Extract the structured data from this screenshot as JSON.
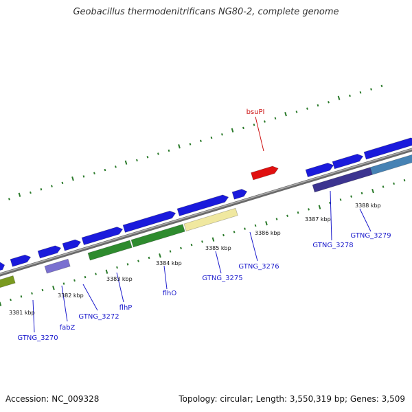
{
  "header": {
    "title": "Geobacillus thermodenitrificans NG80-2, complete genome"
  },
  "footer": {
    "accession": "Accession: NC_009328",
    "stats": "Topology: circular; Length: 3,550,319 bp; Genes: 3,509"
  },
  "colors": {
    "backbone": "#8c8c8c",
    "tick": "#2a7a2a",
    "gene_blue": "#1a1adc",
    "gene_red": "#e01010",
    "gene_green": "#2e8b2e",
    "gene_olive": "#7a9a20",
    "gene_yellow": "#f0e8a0",
    "gene_lavender": "#7a70d0",
    "gene_navy": "#3c3490",
    "gene_steel": "#4682b4",
    "label_blue": "#1a1acc",
    "label_red": "#cc1010"
  },
  "scale": {
    "ticks": [
      {
        "label": "3381 kbp"
      },
      {
        "label": "3382 kbp"
      },
      {
        "label": "3383 kbp"
      },
      {
        "label": "3384 kbp"
      },
      {
        "label": "3385 kbp"
      },
      {
        "label": "3386 kbp"
      },
      {
        "label": "3387 kbp"
      },
      {
        "label": "3388 kbp"
      }
    ]
  },
  "genes": [
    {
      "label": "GTNG_3270",
      "color": "label_blue"
    },
    {
      "label": "fabZ",
      "color": "label_blue"
    },
    {
      "label": "GTNG_3272",
      "color": "label_blue"
    },
    {
      "label": "flhP",
      "color": "label_blue"
    },
    {
      "label": "flhO",
      "color": "label_blue"
    },
    {
      "label": "GTNG_3275",
      "color": "label_blue"
    },
    {
      "label": "GTNG_3276",
      "color": "label_blue"
    },
    {
      "label": "GTNG_3278",
      "color": "label_blue"
    },
    {
      "label": "GTNG_3279",
      "color": "label_blue"
    },
    {
      "label": "bsuPI",
      "color": "label_red"
    }
  ]
}
